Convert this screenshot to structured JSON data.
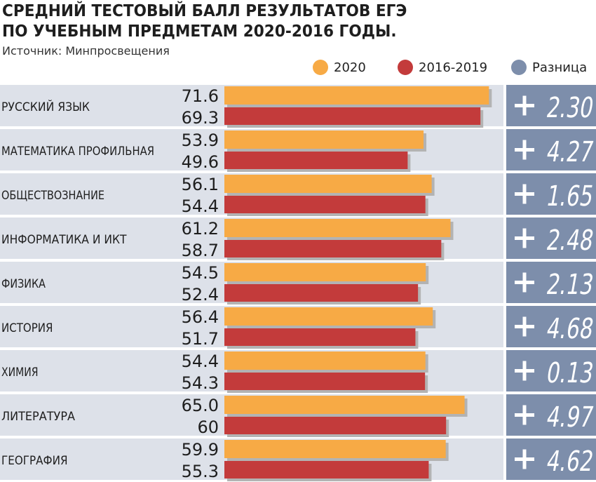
{
  "title_line1": "СРЕДНИЙ ТЕСТОВЫЙ БАЛЛ РЕЗУЛЬТАТОВ ЕГЭ",
  "title_line2": "ПО УЧЕБНЫМ ПРЕДМЕТАМ 2020-2016 ГОДЫ.",
  "source": "Источник: Минпросвещения",
  "colors": {
    "series_2020": "#f7aa45",
    "series_2016_2019": "#c33b3b",
    "diff": "#7d8eab",
    "row_bg": "#dde1e9",
    "shadow": "#b3b3b3"
  },
  "chart_data": {
    "type": "bar",
    "orientation": "horizontal",
    "title": "СРЕДНИЙ ТЕСТОВЫЙ БАЛЛ РЕЗУЛЬТАТОВ ЕГЭ ПО УЧЕБНЫМ ПРЕДМЕТАМ 2020-2016 ГОДЫ.",
    "legend": [
      "2020",
      "2016-2019",
      "Разница"
    ],
    "legend_position": "top-right",
    "categories": [
      "РУССКИЙ ЯЗЫК",
      "МАТЕМАТИКА ПРОФИЛЬНАЯ",
      "ОБЩЕСТВОЗНАНИЕ",
      "ИНФОРМАТИКА И ИКТ",
      "ФИЗИКА",
      "ИСТОРИЯ",
      "ХИМИЯ",
      "ЛИТЕРАТУРА",
      "ГЕОГРАФИЯ"
    ],
    "series": [
      {
        "name": "2020",
        "values": [
          71.6,
          53.9,
          56.1,
          61.2,
          54.5,
          56.4,
          54.4,
          65.0,
          59.9
        ],
        "labels": [
          "71.6",
          "53.9",
          "56.1",
          "61.2",
          "54.5",
          "56.4",
          "54.4",
          "65.0",
          "59.9"
        ]
      },
      {
        "name": "2016-2019",
        "values": [
          69.3,
          49.6,
          54.4,
          58.7,
          52.4,
          51.7,
          54.3,
          60,
          55.3
        ],
        "labels": [
          "69.3",
          "49.6",
          "54.4",
          "58.7",
          "52.4",
          "51.7",
          "54.3",
          "60",
          "55.3"
        ]
      }
    ],
    "difference": {
      "name": "Разница",
      "values": [
        2.3,
        4.27,
        1.65,
        2.48,
        2.13,
        4.68,
        0.13,
        4.97,
        4.62
      ],
      "labels": [
        "2.30",
        "4.27",
        "1.65",
        "2.48",
        "2.13",
        "4.68",
        "0.13",
        "4.97",
        "4.62"
      ],
      "sign": "+"
    }
  }
}
